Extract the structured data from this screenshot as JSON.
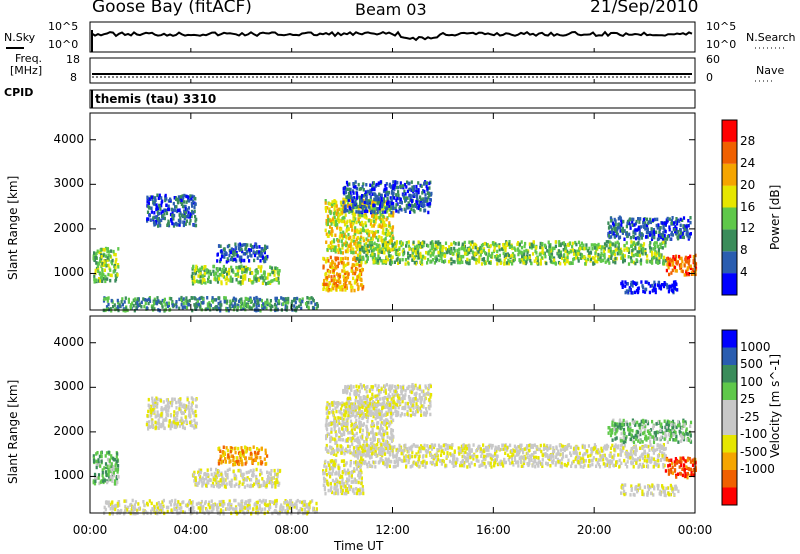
{
  "header": {
    "station": "Goose Bay (fitACF)",
    "beam": "Beam 03",
    "date": "21/Sep/2010"
  },
  "noise_panel": {
    "left_label": "N.Sky",
    "left_ticks": [
      "10^5",
      "10^0"
    ],
    "right_ticks": [
      "10^5",
      "10^0"
    ],
    "right_label": "N.Search"
  },
  "freq_panel": {
    "left_label_1": "Freq.",
    "left_label_2": "[MHz]",
    "left_ticks": [
      "18",
      "8"
    ],
    "right_ticks": [
      "60",
      "0"
    ],
    "right_label": "Nave"
  },
  "cpid_panel": {
    "label": "CPID",
    "value": "themis (tau) 3310"
  },
  "xaxis": {
    "label": "Time UT",
    "ticks": [
      "00:00",
      "04:00",
      "08:00",
      "12:00",
      "16:00",
      "20:00",
      "00:00"
    ]
  },
  "colors": {
    "power_scale": [
      "#0000ff",
      "#2a5db0",
      "#3a8c5a",
      "#5fc84a",
      "#e6e600",
      "#f5a500",
      "#f06000",
      "#ff0000"
    ],
    "velocity_scale": [
      "#ff0000",
      "#f06000",
      "#f5a500",
      "#e6e600",
      "#c8c8c8",
      "#c8c8c8",
      "#5fc84a",
      "#3a8c5a",
      "#2a5db0",
      "#0000ff"
    ]
  },
  "chart_data": [
    {
      "type": "heatmap",
      "name": "power",
      "ylabel": "Slant Range [km]",
      "yticks": [
        "1000",
        "2000",
        "3000",
        "4000"
      ],
      "colorbar_label": "Power [dB]",
      "colorbar_ticks": [
        "4",
        "8",
        "12",
        "16",
        "20",
        "24",
        "28"
      ],
      "ylim": [
        180,
        4600
      ],
      "xlim": [
        0,
        24
      ],
      "regions": [
        {
          "t0": 0.1,
          "t1": 1.1,
          "r0": 850,
          "r1": 1600,
          "level": 3
        },
        {
          "t0": 2.2,
          "t1": 4.2,
          "r0": 2100,
          "r1": 2800,
          "level": 1
        },
        {
          "t0": 4.0,
          "t1": 7.5,
          "r0": 800,
          "r1": 1200,
          "level": 3
        },
        {
          "t0": 5.0,
          "t1": 7.0,
          "r0": 1300,
          "r1": 1700,
          "level": 1
        },
        {
          "t0": 0.5,
          "t1": 9.0,
          "r0": 200,
          "r1": 500,
          "level": 2
        },
        {
          "t0": 9.2,
          "t1": 10.8,
          "r0": 650,
          "r1": 1400,
          "level": 5
        },
        {
          "t0": 9.3,
          "t1": 12.0,
          "r0": 1500,
          "r1": 2700,
          "level": 4
        },
        {
          "t0": 10.0,
          "t1": 13.5,
          "r0": 2400,
          "r1": 3100,
          "level": 1
        },
        {
          "t0": 10.5,
          "t1": 22.8,
          "r0": 1250,
          "r1": 1750,
          "level": 3
        },
        {
          "t0": 20.5,
          "t1": 23.8,
          "r0": 1800,
          "r1": 2300,
          "level": 1
        },
        {
          "t0": 22.8,
          "t1": 24.0,
          "r0": 1000,
          "r1": 1450,
          "level": 6
        },
        {
          "t0": 21.0,
          "t1": 23.3,
          "r0": 600,
          "r1": 850,
          "level": 0
        }
      ]
    },
    {
      "type": "heatmap",
      "name": "velocity",
      "ylabel": "Slant Range [km]",
      "yticks": [
        "1000",
        "2000",
        "3000",
        "4000"
      ],
      "colorbar_label": "Velocity [m s^-1]",
      "colorbar_ticks": [
        "1000",
        "500",
        "100",
        "25",
        "-25",
        "-100",
        "-500",
        "-1000"
      ],
      "ylim": [
        180,
        4600
      ],
      "xlim": [
        0,
        24
      ],
      "regions": [
        {
          "t0": 0.1,
          "t1": 1.1,
          "r0": 850,
          "r1": 1600,
          "level": 6
        },
        {
          "t0": 2.2,
          "t1": 4.2,
          "r0": 2100,
          "r1": 2800,
          "level": 4
        },
        {
          "t0": 4.0,
          "t1": 7.5,
          "r0": 800,
          "r1": 1200,
          "level": 4
        },
        {
          "t0": 5.0,
          "t1": 7.0,
          "r0": 1300,
          "r1": 1700,
          "level": 2
        },
        {
          "t0": 0.5,
          "t1": 9.0,
          "r0": 200,
          "r1": 500,
          "level": 4
        },
        {
          "t0": 9.2,
          "t1": 10.8,
          "r0": 650,
          "r1": 1400,
          "level": 4
        },
        {
          "t0": 9.3,
          "t1": 12.0,
          "r0": 1500,
          "r1": 2700,
          "level": 4
        },
        {
          "t0": 10.0,
          "t1": 13.5,
          "r0": 2400,
          "r1": 3100,
          "level": 4
        },
        {
          "t0": 10.5,
          "t1": 22.8,
          "r0": 1250,
          "r1": 1750,
          "level": 4
        },
        {
          "t0": 20.5,
          "t1": 23.8,
          "r0": 1800,
          "r1": 2300,
          "level": 6
        },
        {
          "t0": 22.8,
          "t1": 24.0,
          "r0": 1000,
          "r1": 1450,
          "level": 1
        },
        {
          "t0": 21.0,
          "t1": 23.3,
          "r0": 600,
          "r1": 850,
          "level": 4
        }
      ]
    }
  ]
}
